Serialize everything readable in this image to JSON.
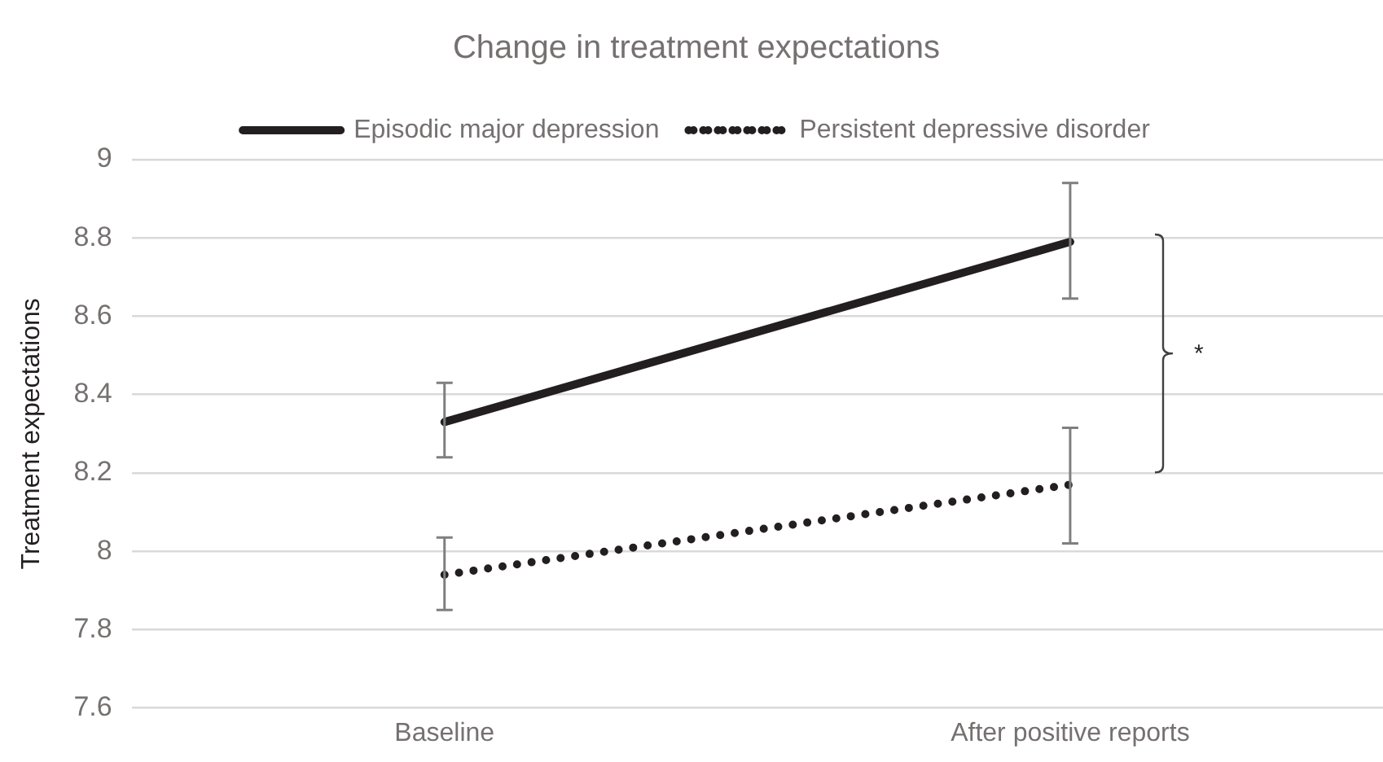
{
  "chart_data": {
    "type": "line",
    "title": "Change in treatment expectations",
    "ylabel": "Treatment expectations",
    "categories": [
      "Baseline",
      "After positive reports"
    ],
    "series": [
      {
        "name": "Episodic major depression",
        "color": "#231f20",
        "line_style": "solid",
        "values": [
          8.33,
          8.79
        ],
        "errors": [
          [
            8.24,
            8.43
          ],
          [
            8.645,
            8.94
          ]
        ]
      },
      {
        "name": "Persistent depressive disorder",
        "color": "#231f20",
        "line_style": "dotted",
        "values": [
          7.94,
          8.17
        ],
        "errors": [
          [
            7.85,
            8.035
          ],
          [
            8.02,
            8.315
          ]
        ]
      }
    ],
    "ylim": [
      7.6,
      9
    ],
    "yticks": [
      7.6,
      7.8,
      8,
      8.2,
      8.4,
      8.6,
      8.8,
      9
    ],
    "grid": "y",
    "legend": "top",
    "marker": "none",
    "annotations": [
      "*"
    ]
  }
}
